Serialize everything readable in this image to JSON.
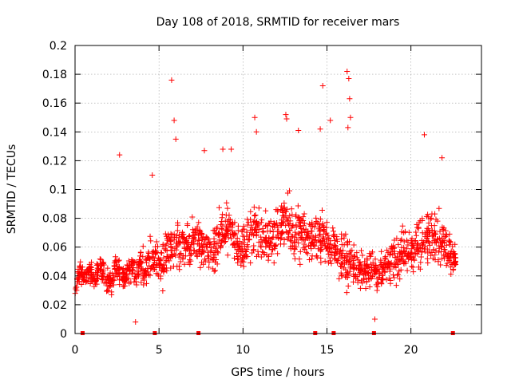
{
  "chart_data": {
    "type": "scatter",
    "title": "Day 108 of 2018, SRMTID for receiver mars",
    "xlabel": "GPS time / hours",
    "ylabel": "SRMTID / TECUs",
    "xlim": [
      0,
      24.2
    ],
    "ylim": [
      0,
      0.2
    ],
    "xticks": [
      0,
      5,
      10,
      15,
      20
    ],
    "xtick_labels": [
      "0",
      "5",
      "10",
      "15",
      "20"
    ],
    "yticks": [
      0,
      0.02,
      0.04,
      0.06,
      0.08,
      0.1,
      0.12,
      0.14,
      0.16,
      0.18,
      0.2
    ],
    "ytick_labels": [
      "0",
      "0.02",
      "0.04",
      "0.06",
      "0.08",
      "0.1",
      "0.12",
      "0.14",
      "0.16",
      "0.18",
      "0.2"
    ],
    "grid": true,
    "marker": "+",
    "color": "#ff0000",
    "series": [
      {
        "name": "SRMTID",
        "x": [
          0.0,
          0.3,
          0.6,
          0.9,
          1.2,
          1.5,
          1.8,
          2.1,
          2.4,
          2.7,
          3.0,
          3.3,
          3.6,
          3.9,
          4.2,
          4.5,
          4.8,
          5.1,
          5.4,
          5.7,
          6.0,
          6.3,
          6.6,
          6.9,
          7.2,
          7.5,
          7.8,
          8.1,
          8.4,
          8.7,
          9.0,
          9.3,
          9.6,
          9.9,
          10.2,
          10.5,
          10.8,
          11.1,
          11.4,
          11.7,
          12.0,
          12.3,
          12.6,
          12.9,
          13.2,
          13.5,
          13.8,
          14.1,
          14.4,
          14.7,
          15.0,
          15.3,
          15.6,
          15.9,
          16.2,
          16.5,
          16.8,
          17.1,
          17.4,
          17.7,
          18.0,
          18.3,
          18.6,
          18.9,
          19.2,
          19.5,
          19.8,
          20.1,
          20.4,
          20.7,
          21.0,
          21.3,
          21.6,
          21.9,
          22.2,
          22.5,
          22.7
        ],
        "y": [
          0.03,
          0.042,
          0.038,
          0.045,
          0.036,
          0.05,
          0.039,
          0.034,
          0.047,
          0.041,
          0.038,
          0.045,
          0.04,
          0.048,
          0.044,
          0.05,
          0.052,
          0.046,
          0.055,
          0.06,
          0.062,
          0.058,
          0.064,
          0.06,
          0.066,
          0.063,
          0.058,
          0.055,
          0.06,
          0.07,
          0.075,
          0.068,
          0.062,
          0.06,
          0.066,
          0.072,
          0.07,
          0.063,
          0.068,
          0.066,
          0.072,
          0.075,
          0.078,
          0.072,
          0.07,
          0.074,
          0.068,
          0.066,
          0.064,
          0.07,
          0.062,
          0.06,
          0.058,
          0.055,
          0.05,
          0.048,
          0.045,
          0.042,
          0.044,
          0.046,
          0.041,
          0.043,
          0.048,
          0.052,
          0.05,
          0.055,
          0.058,
          0.06,
          0.062,
          0.064,
          0.068,
          0.07,
          0.066,
          0.062,
          0.058,
          0.055,
          0.05
        ],
        "spread": [
          0.012,
          0.014,
          0.014,
          0.015,
          0.014,
          0.017,
          0.016,
          0.016,
          0.02,
          0.018,
          0.016,
          0.018,
          0.016,
          0.02,
          0.02,
          0.022,
          0.024,
          0.022,
          0.024,
          0.026,
          0.026,
          0.024,
          0.026,
          0.024,
          0.026,
          0.024,
          0.024,
          0.026,
          0.026,
          0.03,
          0.032,
          0.03,
          0.028,
          0.028,
          0.03,
          0.032,
          0.032,
          0.03,
          0.03,
          0.03,
          0.032,
          0.034,
          0.036,
          0.034,
          0.032,
          0.032,
          0.03,
          0.028,
          0.028,
          0.03,
          0.028,
          0.028,
          0.028,
          0.028,
          0.026,
          0.024,
          0.022,
          0.02,
          0.02,
          0.02,
          0.018,
          0.018,
          0.02,
          0.024,
          0.026,
          0.028,
          0.028,
          0.028,
          0.028,
          0.03,
          0.032,
          0.032,
          0.03,
          0.028,
          0.026,
          0.024,
          0.014
        ]
      }
    ],
    "outliers": {
      "x": [
        2.65,
        4.6,
        5.75,
        5.9,
        6.0,
        7.7,
        8.8,
        9.3,
        10.7,
        10.8,
        12.55,
        12.6,
        13.3,
        14.6,
        14.75,
        15.2,
        16.2,
        16.3,
        16.35,
        16.4,
        16.25,
        17.85,
        20.8,
        21.85,
        3.6
      ],
      "y": [
        0.124,
        0.11,
        0.176,
        0.148,
        0.135,
        0.127,
        0.128,
        0.128,
        0.15,
        0.14,
        0.152,
        0.149,
        0.141,
        0.142,
        0.172,
        0.148,
        0.182,
        0.177,
        0.163,
        0.15,
        0.143,
        0.01,
        0.138,
        0.122,
        0.008
      ]
    },
    "gaps": {
      "x": [
        0.45,
        4.75,
        7.35,
        14.3,
        15.4,
        17.8,
        22.5
      ],
      "y": [
        0,
        0,
        0,
        0,
        0,
        0,
        0
      ]
    }
  }
}
